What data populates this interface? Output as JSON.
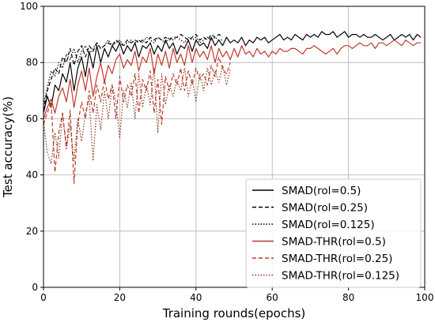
{
  "chart_data": {
    "type": "line",
    "title": "",
    "xlabel": "Training rounds(epochs)",
    "ylabel": "Test accuracy(%)",
    "xlim": [
      0,
      100
    ],
    "ylim": [
      0,
      100
    ],
    "xticks": [
      "0",
      "20",
      "40",
      "60",
      "80",
      "100"
    ],
    "yticks": [
      "0",
      "20",
      "40",
      "60",
      "80",
      "100"
    ],
    "grid": true,
    "legend_position": "lower-right",
    "colors": {
      "black": "#000000",
      "red": "#c0392b",
      "brown": "#8b3a1a",
      "grid": "#b0b0b0"
    },
    "series": [
      {
        "name": "SMAD(rol=0.5)",
        "color": "#000000",
        "dash": "solid",
        "x": [
          0,
          1,
          2,
          3,
          4,
          5,
          6,
          7,
          8,
          9,
          10,
          11,
          12,
          13,
          14,
          15,
          16,
          17,
          18,
          19,
          20,
          21,
          22,
          23,
          24,
          25,
          26,
          27,
          28,
          29,
          30,
          31,
          32,
          33,
          34,
          35,
          36,
          37,
          38,
          39,
          40,
          41,
          42,
          43,
          44,
          45,
          46,
          47,
          48,
          49,
          50,
          51,
          52,
          53,
          54,
          55,
          56,
          57,
          58,
          59,
          60,
          61,
          62,
          63,
          64,
          65,
          66,
          67,
          68,
          69,
          70,
          71,
          72,
          73,
          74,
          75,
          76,
          77,
          78,
          79,
          80,
          81,
          82,
          83,
          84,
          85,
          86,
          87,
          88,
          89,
          90,
          91,
          92,
          93,
          94,
          95,
          96,
          97,
          98,
          99
        ],
        "values": [
          62,
          68,
          64,
          72,
          70,
          76,
          73,
          80,
          70,
          78,
          82,
          75,
          84,
          78,
          86,
          80,
          85,
          82,
          86,
          84,
          87,
          83,
          86,
          84,
          87,
          82,
          86,
          85,
          87,
          83,
          86,
          84,
          88,
          85,
          87,
          83,
          86,
          85,
          88,
          84,
          88,
          86,
          87,
          85,
          89,
          86,
          88,
          86,
          89,
          87,
          88,
          87,
          89,
          86,
          88,
          87,
          89,
          88,
          89,
          87,
          88,
          89,
          90,
          88,
          89,
          88,
          90,
          89,
          88,
          90,
          89,
          90,
          89,
          91,
          90,
          90,
          91,
          89,
          90,
          91,
          89,
          90,
          90,
          89,
          90,
          89,
          89,
          90,
          89,
          88,
          89,
          90,
          88,
          89,
          90,
          89,
          90,
          88,
          90,
          89
        ]
      },
      {
        "name": "SMAD(rol=0.25)",
        "color": "#000000",
        "dash": "dashed",
        "x": [
          0,
          1,
          2,
          3,
          4,
          5,
          6,
          7,
          8,
          9,
          10,
          11,
          12,
          13,
          14,
          15,
          16,
          17,
          18,
          19,
          20,
          21,
          22,
          23,
          24,
          25,
          26,
          27,
          28,
          29,
          30,
          31,
          32,
          33,
          34,
          35,
          36,
          37,
          38,
          39,
          40,
          41,
          42,
          43,
          44,
          45,
          46,
          47
        ],
        "values": [
          63,
          70,
          74,
          78,
          76,
          82,
          80,
          85,
          79,
          84,
          86,
          82,
          86,
          84,
          87,
          85,
          86,
          87,
          86,
          88,
          87,
          86,
          88,
          87,
          88,
          87,
          88,
          87,
          89,
          88,
          89,
          88,
          89,
          88,
          89,
          89,
          90,
          89,
          88,
          89,
          90,
          88,
          89,
          88,
          90,
          89,
          90,
          89
        ]
      },
      {
        "name": "SMAD(rol=0.125)",
        "color": "#000000",
        "dash": "dotted",
        "x": [
          0,
          1,
          2,
          3,
          4,
          5,
          6,
          7,
          8,
          9,
          10,
          11,
          12,
          13,
          14,
          15,
          16,
          17,
          18,
          19,
          20,
          21,
          22,
          23,
          24,
          25,
          26,
          27,
          28,
          29,
          30,
          31,
          32,
          33,
          34,
          35,
          36,
          37,
          38,
          39,
          40,
          41,
          42,
          43,
          44,
          45,
          46,
          47
        ],
        "values": [
          65,
          71,
          77,
          75,
          80,
          78,
          83,
          81,
          85,
          80,
          84,
          86,
          83,
          85,
          87,
          85,
          86,
          88,
          86,
          87,
          88,
          86,
          87,
          88,
          87,
          88,
          87,
          89,
          88,
          87,
          89,
          88,
          87,
          89,
          88,
          89,
          88,
          87,
          89,
          88,
          89,
          87,
          88,
          89,
          88,
          89,
          88,
          88
        ]
      },
      {
        "name": "SMAD-THR(rol=0.5)",
        "color": "#c0392b",
        "dash": "solid",
        "x": [
          0,
          1,
          2,
          3,
          4,
          5,
          6,
          7,
          8,
          9,
          10,
          11,
          12,
          13,
          14,
          15,
          16,
          17,
          18,
          19,
          20,
          21,
          22,
          23,
          24,
          25,
          26,
          27,
          28,
          29,
          30,
          31,
          32,
          33,
          34,
          35,
          36,
          37,
          38,
          39,
          40,
          41,
          42,
          43,
          44,
          45,
          46,
          47,
          48,
          49,
          50,
          51,
          52,
          53,
          54,
          55,
          56,
          57,
          58,
          59,
          60,
          61,
          62,
          63,
          64,
          65,
          66,
          67,
          68,
          69,
          70,
          71,
          72,
          73,
          74,
          75,
          76,
          77,
          78,
          79,
          80,
          81,
          82,
          83,
          84,
          85,
          86,
          87,
          88,
          89,
          90,
          91,
          92,
          93,
          94,
          95,
          96,
          97,
          98,
          99
        ],
        "values": [
          60,
          64,
          67,
          62,
          68,
          71,
          66,
          74,
          64,
          72,
          77,
          70,
          78,
          68,
          75,
          80,
          73,
          79,
          76,
          81,
          83,
          78,
          81,
          79,
          84,
          77,
          82,
          80,
          85,
          76,
          83,
          79,
          84,
          78,
          85,
          80,
          83,
          79,
          86,
          80,
          85,
          82,
          84,
          81,
          86,
          80,
          85,
          82,
          84,
          81,
          85,
          82,
          86,
          83,
          84,
          82,
          85,
          83,
          84,
          82,
          84,
          83,
          85,
          84,
          84,
          85,
          85,
          84,
          83,
          85,
          85,
          86,
          85,
          84,
          83,
          84,
          85,
          83,
          85,
          86,
          86,
          85,
          86,
          87,
          86,
          86,
          87,
          85,
          87,
          87,
          86,
          87,
          88,
          87,
          86,
          88,
          87,
          86,
          87,
          87
        ]
      },
      {
        "name": "SMAD-THR(rol=0.25)",
        "color": "#c0392b",
        "dash": "dashed",
        "x": [
          0,
          1,
          2,
          3,
          4,
          5,
          6,
          7,
          8,
          9,
          10,
          11,
          12,
          13,
          14,
          15,
          16,
          17,
          18,
          19,
          20,
          21,
          22,
          23,
          24,
          25,
          26,
          27,
          28,
          29,
          30,
          31,
          32,
          33,
          34,
          35,
          36,
          37,
          38,
          39,
          40,
          41,
          42,
          43,
          44,
          45,
          46,
          47,
          48,
          49
        ],
        "values": [
          58,
          62,
          66,
          41,
          55,
          62,
          50,
          63,
          37,
          58,
          66,
          60,
          70,
          62,
          72,
          66,
          74,
          67,
          72,
          60,
          75,
          66,
          72,
          68,
          76,
          62,
          74,
          70,
          77,
          62,
          74,
          58,
          75,
          70,
          76,
          72,
          78,
          70,
          77,
          72,
          78,
          74,
          76,
          72,
          79,
          75,
          82,
          78,
          76,
          80
        ]
      },
      {
        "name": "SMAD-THR(rol=0.125)",
        "color": "#8b3a1a",
        "dash": "dotted",
        "x": [
          0,
          1,
          2,
          3,
          4,
          5,
          6,
          7,
          8,
          9,
          10,
          11,
          12,
          13,
          14,
          15,
          16,
          17,
          18,
          19,
          20,
          21,
          22,
          23,
          24,
          25,
          26,
          27,
          28,
          29,
          30,
          31,
          32,
          33,
          34,
          35,
          36,
          37,
          38,
          39,
          40,
          41,
          42,
          43,
          44,
          45,
          46,
          47,
          48,
          49
        ],
        "values": [
          59,
          48,
          44,
          55,
          46,
          62,
          49,
          58,
          45,
          60,
          52,
          62,
          67,
          45,
          65,
          56,
          70,
          60,
          72,
          66,
          53,
          70,
          64,
          73,
          60,
          76,
          64,
          72,
          65,
          78,
          55,
          76,
          65,
          72,
          68,
          74,
          70,
          78,
          68,
          74,
          66,
          76,
          70,
          78,
          72,
          77,
          73,
          79,
          72,
          78
        ]
      }
    ]
  }
}
